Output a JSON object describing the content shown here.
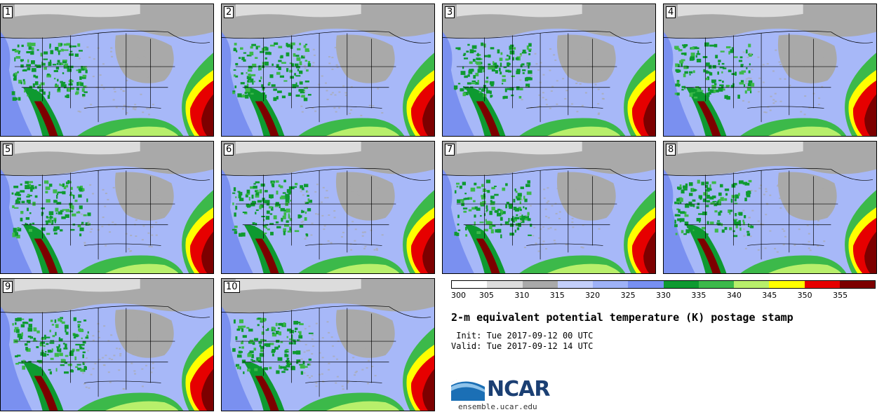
{
  "panels": [
    {
      "number": "1"
    },
    {
      "number": "2"
    },
    {
      "number": "3"
    },
    {
      "number": "4"
    },
    {
      "number": "5"
    },
    {
      "number": "6"
    },
    {
      "number": "7"
    },
    {
      "number": "8"
    },
    {
      "number": "9"
    },
    {
      "number": "10"
    }
  ],
  "colorbar": {
    "labels": [
      "300",
      "305",
      "310",
      "315",
      "320",
      "325",
      "330",
      "335",
      "340",
      "345",
      "350",
      "355"
    ],
    "colors": [
      "#ffffff",
      "#dcdcdc",
      "#a9a9a9",
      "#c3cffb",
      "#9eb2f8",
      "#7890f2",
      "#0e9a30",
      "#3cb94a",
      "#b8ef6b",
      "#ffff00",
      "#e60000",
      "#7d0000"
    ]
  },
  "map_colors": {
    "ocean_west": "#7a90f0",
    "land_base": "#a7b8f8",
    "north_gray": "#a9a9a9",
    "north_light": "#dcdcdc",
    "green_dark": "#0e9a30",
    "green_mid": "#3cb94a",
    "green_light": "#b8ef6b",
    "yellow": "#ffff00",
    "red": "#e60000",
    "maroon": "#7d0000"
  },
  "title": "2-m equivalent potential temperature (K) postage stamp",
  "init_text": " Init: Tue 2017-09-12 00 UTC",
  "valid_text": "Valid: Tue 2017-09-12 14 UTC",
  "logo_text": "NCAR",
  "url": "ensemble.ucar.edu"
}
